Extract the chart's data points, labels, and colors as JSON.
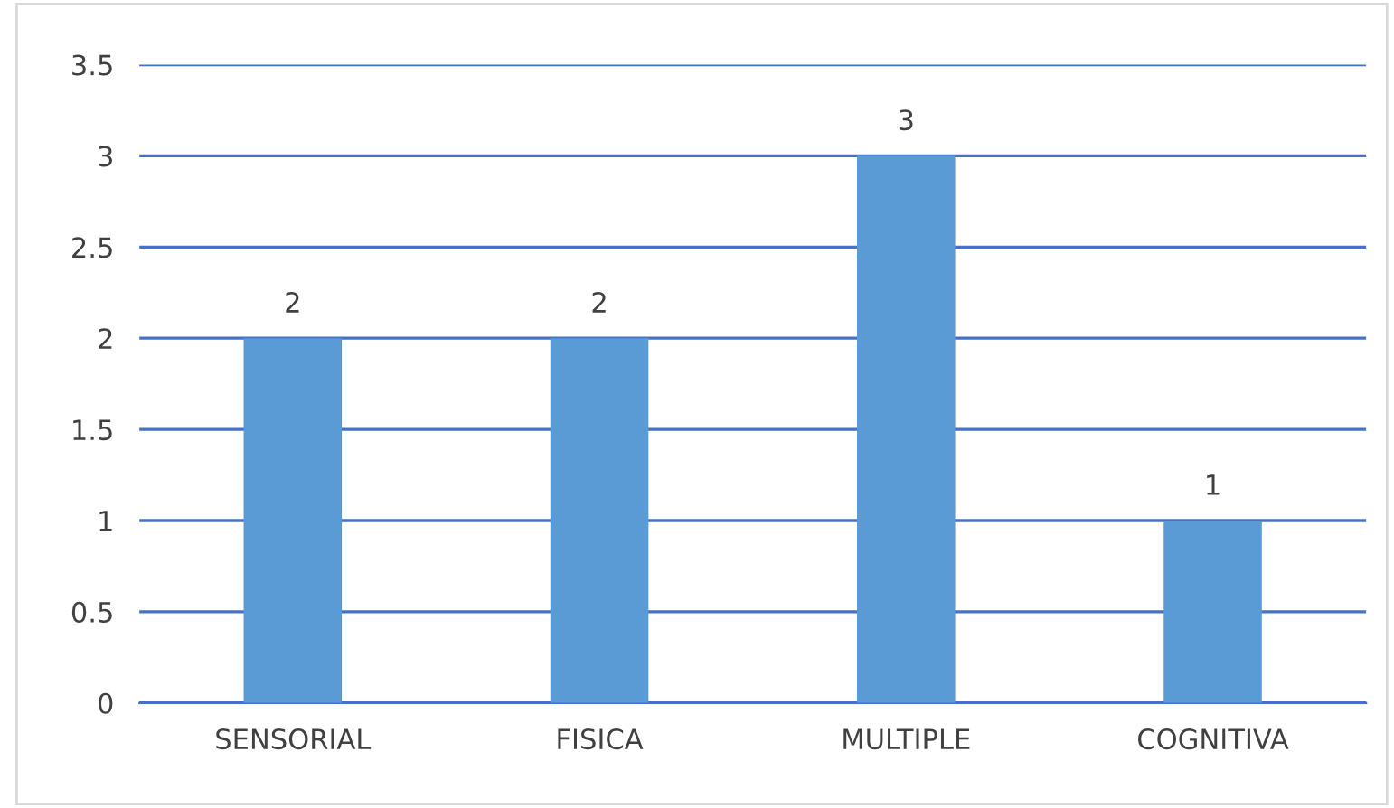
{
  "chart_data": {
    "type": "bar",
    "categories": [
      "SENSORIAL",
      "FISICA",
      "MULTIPLE",
      "COGNITIVA"
    ],
    "values": [
      2,
      2,
      3,
      1
    ],
    "color": "#5b9bd5",
    "ylim": [
      0,
      3.5
    ],
    "yticks": [
      0,
      {
        "value": 0.5,
        "label": "0.5"
      },
      1,
      {
        "value": 1.5,
        "label": "1.5"
      },
      2,
      {
        "value": 2.5,
        "label": "2.5"
      },
      3,
      {
        "value": 3.5,
        "label": "3.5"
      }
    ],
    "grid": "y",
    "data_labels": true
  }
}
